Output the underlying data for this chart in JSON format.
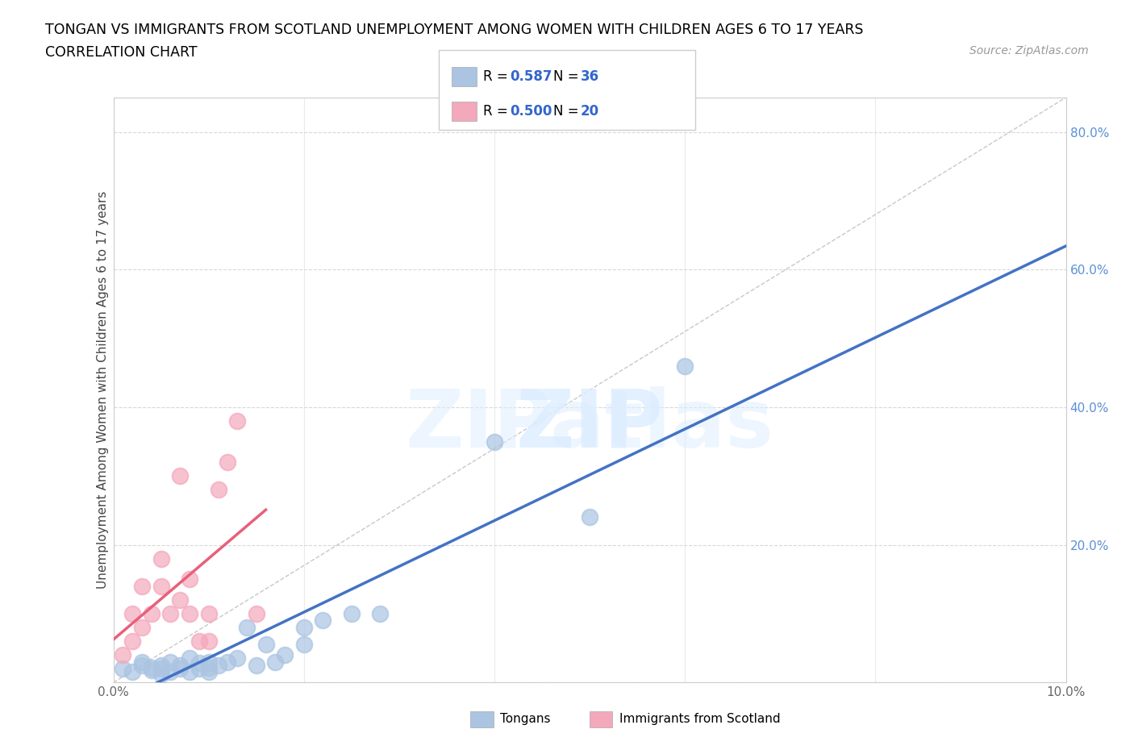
{
  "title_line1": "TONGAN VS IMMIGRANTS FROM SCOTLAND UNEMPLOYMENT AMONG WOMEN WITH CHILDREN AGES 6 TO 17 YEARS",
  "title_line2": "CORRELATION CHART",
  "source": "Source: ZipAtlas.com",
  "ylabel": "Unemployment Among Women with Children Ages 6 to 17 years",
  "xlim": [
    0.0,
    0.1
  ],
  "ylim": [
    0.0,
    0.85
  ],
  "x_ticks": [
    0.0,
    0.02,
    0.04,
    0.06,
    0.08,
    0.1
  ],
  "y_ticks": [
    0.0,
    0.2,
    0.4,
    0.6,
    0.8
  ],
  "r_tongan": 0.587,
  "n_tongan": 36,
  "r_scotland": 0.5,
  "n_scotland": 20,
  "tongan_color": "#aac4e2",
  "scotland_color": "#f4a8bc",
  "line_tongan_color": "#4472c4",
  "line_scotland_color": "#e8607a",
  "diagonal_color": "#c8c8c8",
  "tongan_x": [
    0.001,
    0.002,
    0.003,
    0.003,
    0.004,
    0.004,
    0.005,
    0.005,
    0.005,
    0.006,
    0.006,
    0.007,
    0.007,
    0.008,
    0.008,
    0.009,
    0.009,
    0.01,
    0.01,
    0.01,
    0.011,
    0.012,
    0.013,
    0.014,
    0.015,
    0.016,
    0.017,
    0.018,
    0.02,
    0.02,
    0.022,
    0.025,
    0.028,
    0.04,
    0.05,
    0.06
  ],
  "tongan_y": [
    0.02,
    0.015,
    0.025,
    0.03,
    0.018,
    0.022,
    0.012,
    0.02,
    0.025,
    0.015,
    0.03,
    0.02,
    0.025,
    0.015,
    0.035,
    0.02,
    0.028,
    0.015,
    0.022,
    0.03,
    0.025,
    0.03,
    0.035,
    0.08,
    0.025,
    0.055,
    0.03,
    0.04,
    0.08,
    0.055,
    0.09,
    0.1,
    0.1,
    0.35,
    0.24,
    0.46
  ],
  "scotland_x": [
    0.001,
    0.002,
    0.002,
    0.003,
    0.003,
    0.004,
    0.005,
    0.005,
    0.006,
    0.007,
    0.007,
    0.008,
    0.008,
    0.009,
    0.01,
    0.01,
    0.011,
    0.012,
    0.013,
    0.015
  ],
  "scotland_y": [
    0.04,
    0.06,
    0.1,
    0.08,
    0.14,
    0.1,
    0.14,
    0.18,
    0.1,
    0.12,
    0.3,
    0.1,
    0.15,
    0.06,
    0.06,
    0.1,
    0.28,
    0.32,
    0.38,
    0.1
  ],
  "legend_label_tongan": "Tongans",
  "legend_label_scotland": "Immigrants from Scotland",
  "background_color": "#ffffff",
  "grid_color": "#d8d8d8",
  "tick_color_right": "#5c8fd6",
  "tick_color_bottom": "#666666"
}
